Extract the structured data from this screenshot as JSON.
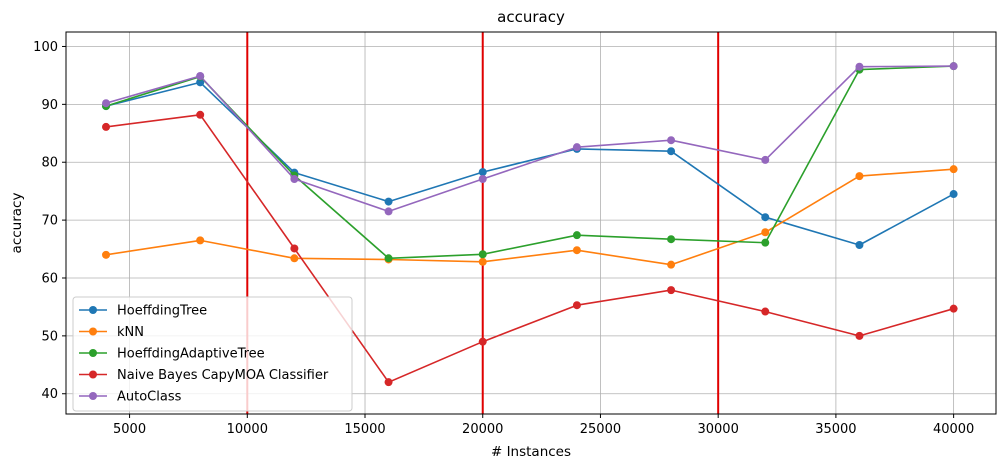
{
  "chart_data": {
    "type": "line",
    "title": "accuracy",
    "xlabel": "# Instances",
    "ylabel": "accuracy",
    "xlim": [
      2300,
      41800
    ],
    "ylim": [
      36.5,
      102.5
    ],
    "xticks": [
      5000,
      10000,
      15000,
      20000,
      25000,
      30000,
      35000,
      40000
    ],
    "yticks": [
      40,
      50,
      60,
      70,
      80,
      90,
      100
    ],
    "grid": true,
    "legend_position": "lower-left",
    "drift_lines": [
      10000,
      20000,
      30000
    ],
    "drift_line_color": "#e00000",
    "x": [
      4000,
      8000,
      12000,
      16000,
      20000,
      24000,
      28000,
      32000,
      36000,
      40000
    ],
    "series": [
      {
        "name": "HoeffdingTree",
        "color": "#1f77b4",
        "values": [
          89.7,
          93.8,
          78.2,
          73.2,
          78.3,
          82.3,
          81.9,
          70.5,
          65.7,
          74.5
        ]
      },
      {
        "name": "kNN",
        "color": "#ff7f0e",
        "values": [
          64.0,
          66.5,
          63.4,
          63.2,
          62.8,
          64.8,
          62.3,
          67.9,
          77.6,
          78.8
        ]
      },
      {
        "name": "HoeffdingAdaptiveTree",
        "color": "#2ca02c",
        "values": [
          89.7,
          94.8,
          77.7,
          63.4,
          64.1,
          67.4,
          66.7,
          66.1,
          96.0,
          96.6
        ]
      },
      {
        "name": "Naive Bayes CapyMOA Classifier",
        "color": "#d62728",
        "values": [
          86.1,
          88.2,
          65.1,
          42.0,
          49.0,
          55.3,
          57.9,
          54.2,
          50.0,
          54.7
        ]
      },
      {
        "name": "AutoClass",
        "color": "#9467bd",
        "values": [
          90.2,
          94.9,
          77.1,
          71.5,
          77.1,
          82.6,
          83.8,
          80.4,
          96.5,
          96.6
        ]
      }
    ]
  }
}
